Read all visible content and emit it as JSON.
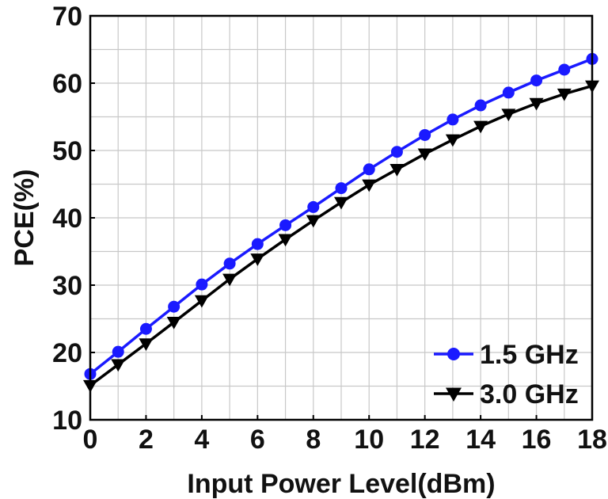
{
  "chart_data": {
    "type": "line",
    "xlabel": "Input Power Level(dBm)",
    "ylabel": "PCE(%)",
    "xlim": [
      0,
      18
    ],
    "ylim": [
      10,
      70
    ],
    "x_ticks": [
      "0",
      "2",
      "4",
      "6",
      "8",
      "10",
      "12",
      "14",
      "16",
      "18"
    ],
    "y_ticks": [
      "10",
      "20",
      "30",
      "40",
      "50",
      "60",
      "70"
    ],
    "grid": true,
    "legend_position": "bottom-right",
    "x": [
      0,
      1,
      2,
      3,
      4,
      5,
      6,
      7,
      8,
      9,
      10,
      11,
      12,
      13,
      14,
      15,
      16,
      17,
      18
    ],
    "series": [
      {
        "name": "1.5 GHz",
        "color": "#1a1aff",
        "marker": "circle",
        "values": [
          16.8,
          20.1,
          23.5,
          26.8,
          30.1,
          33.2,
          36.1,
          38.9,
          41.6,
          44.4,
          47.2,
          49.8,
          52.3,
          54.6,
          56.7,
          58.6,
          60.4,
          62.0,
          63.6
        ]
      },
      {
        "name": "3.0 GHz",
        "color": "#000000",
        "marker": "triangle-down",
        "values": [
          15.1,
          18.2,
          21.3,
          24.5,
          27.7,
          30.9,
          33.9,
          36.8,
          39.6,
          42.3,
          44.9,
          47.2,
          49.5,
          51.6,
          53.6,
          55.4,
          57.0,
          58.4,
          59.6
        ]
      }
    ]
  }
}
